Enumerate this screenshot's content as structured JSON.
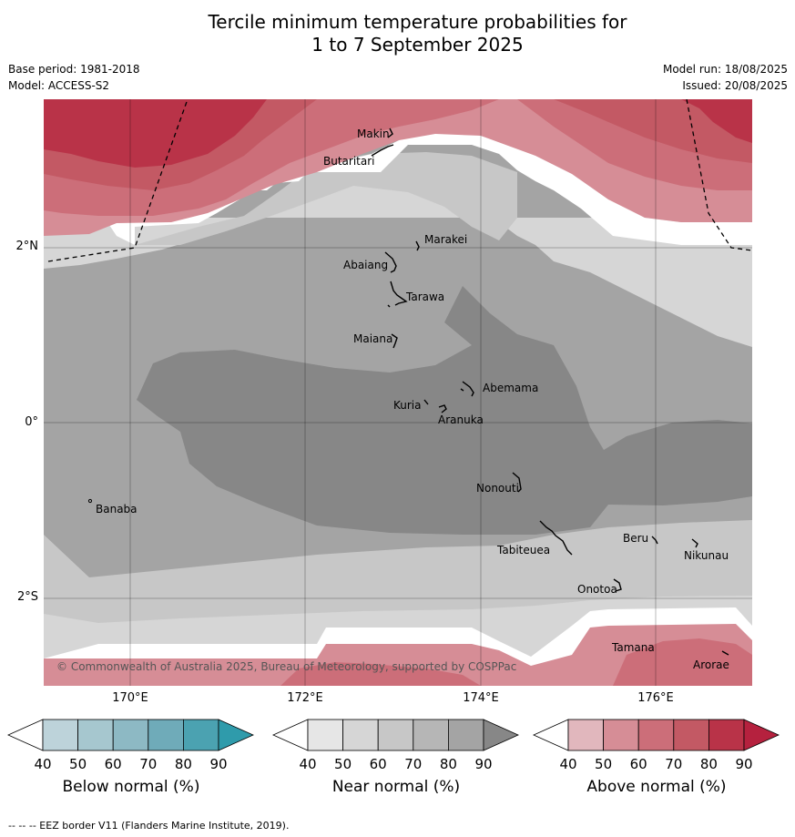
{
  "header": {
    "title_line1": "Tercile minimum temperature probabilities for",
    "title_line2": "1 to 7 September 2025",
    "base_period": "Base period: 1981-2018",
    "model": "Model: ACCESS-S2",
    "model_run": "Model run: 18/08/2025",
    "issued": "Issued: 20/08/2025"
  },
  "map": {
    "lon_labels": [
      "170°E",
      "172°E",
      "174°E",
      "176°E"
    ],
    "lat_labels": [
      "2°N",
      "0°",
      "2°S"
    ],
    "copyright": "© Commonwealth of Australia 2025, Bureau of Meteorology, supported by COSPPac",
    "places": [
      {
        "name": "Makin"
      },
      {
        "name": "Butaritari"
      },
      {
        "name": "Marakei"
      },
      {
        "name": "Abaiang"
      },
      {
        "name": "Tarawa"
      },
      {
        "name": "Maiana"
      },
      {
        "name": "Abemama"
      },
      {
        "name": "Kuria"
      },
      {
        "name": "Aranuka"
      },
      {
        "name": "Nonouti"
      },
      {
        "name": "Banaba"
      },
      {
        "name": "Tabiteuea"
      },
      {
        "name": "Beru"
      },
      {
        "name": "Nikunau"
      },
      {
        "name": "Onotoa"
      },
      {
        "name": "Tamana"
      },
      {
        "name": "Arorae"
      }
    ]
  },
  "legends": [
    {
      "title": "Below normal (%)",
      "ticks": [
        "40",
        "50",
        "60",
        "70",
        "80",
        "90"
      ],
      "colors": [
        "#ffffff",
        "#bdd3da",
        "#a6c7cf",
        "#8db9c4",
        "#6fabb9",
        "#4ba2b1",
        "#2f9bab"
      ]
    },
    {
      "title": "Near normal (%)",
      "ticks": [
        "40",
        "50",
        "60",
        "70",
        "80",
        "90"
      ],
      "colors": [
        "#ffffff",
        "#e6e6e6",
        "#d6d6d6",
        "#c7c7c7",
        "#b6b6b6",
        "#a4a4a4",
        "#878787"
      ]
    },
    {
      "title": "Above normal (%)",
      "ticks": [
        "40",
        "50",
        "60",
        "70",
        "80",
        "90"
      ],
      "colors": [
        "#ffffff",
        "#e1b7bd",
        "#d68d96",
        "#cc6e79",
        "#c35964",
        "#b93348",
        "#b5213e"
      ]
    }
  ],
  "footer": {
    "eez_note": "--  --  -- EEZ border V11 (Flanders Marine Institute, 2019)."
  }
}
